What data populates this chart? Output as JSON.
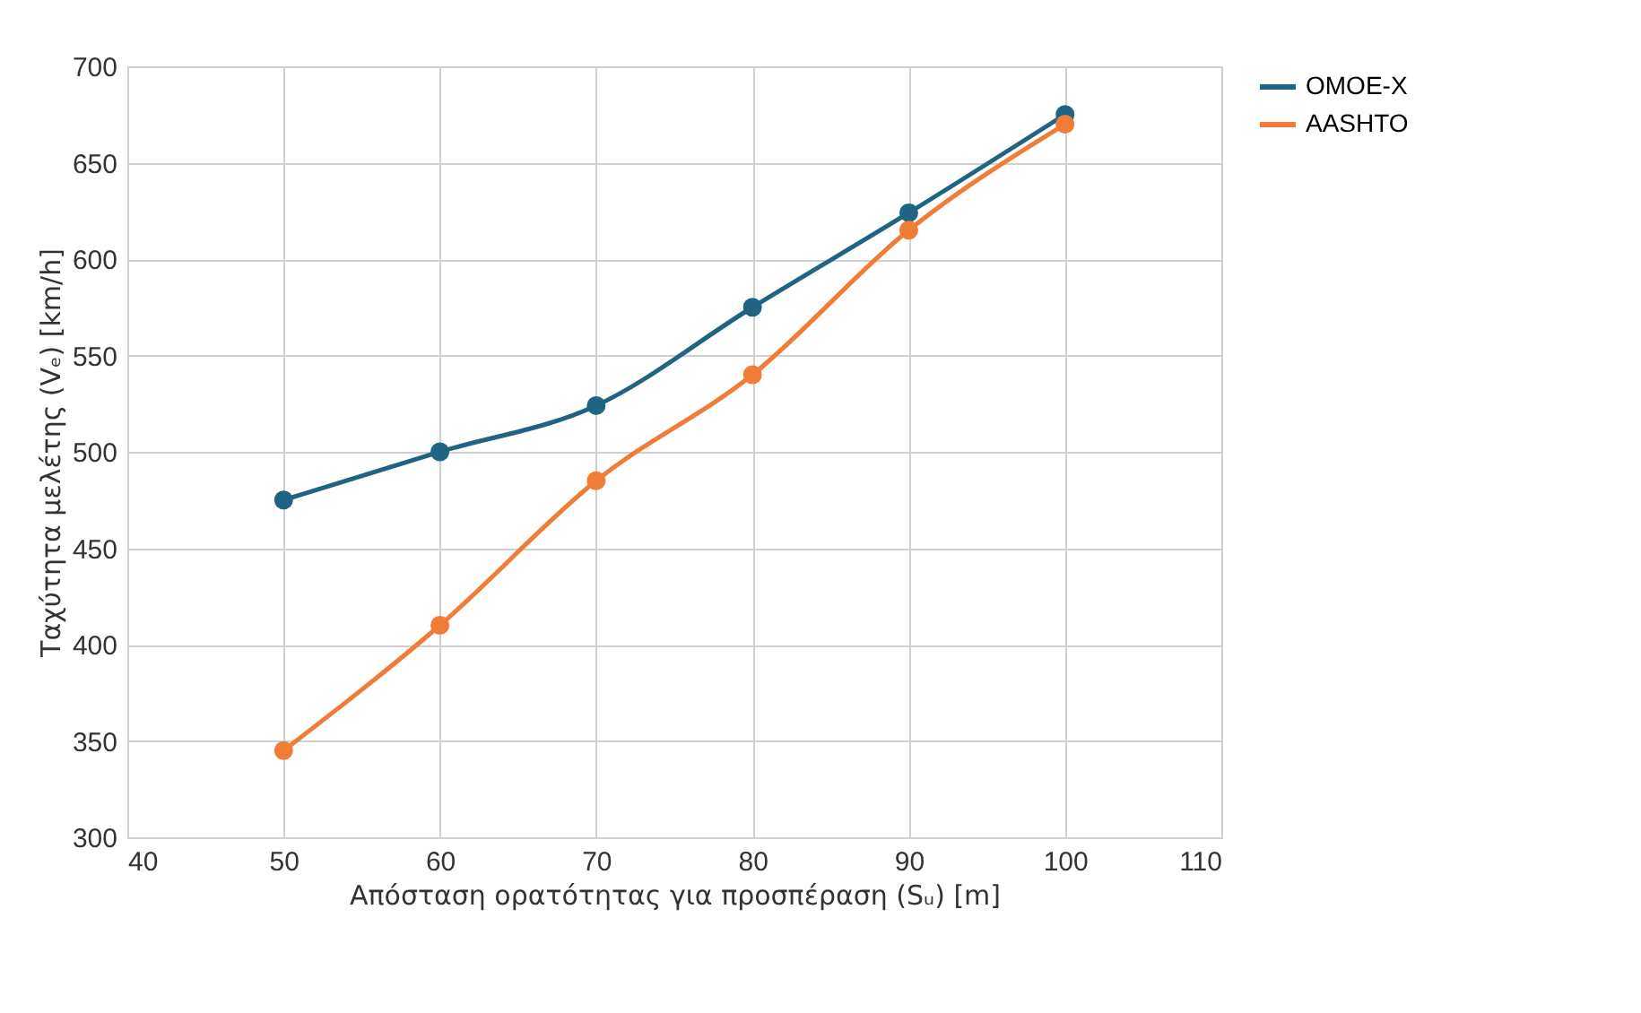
{
  "chart_data": {
    "type": "line",
    "xlabel": "Απόσταση ορατότητας για προσπέραση (Sᵤ) [m]",
    "ylabel": "Ταχύτητα μελέτης (Vₑ) [km/h]",
    "x": [
      50,
      60,
      70,
      80,
      90,
      100
    ],
    "series": [
      {
        "name": "OMOE-X",
        "color": "#1f6482",
        "values": [
          475,
          500,
          524,
          575,
          624,
          675
        ]
      },
      {
        "name": "AASHTO",
        "color": "#f07c36",
        "values": [
          345,
          410,
          485,
          540,
          615,
          670
        ]
      }
    ],
    "xlim": [
      40,
      110
    ],
    "xticks": [
      40,
      50,
      60,
      70,
      80,
      90,
      100,
      110
    ],
    "ylim": [
      300,
      700
    ],
    "yticks": [
      300,
      350,
      400,
      450,
      500,
      550,
      600,
      650,
      700
    ],
    "grid": true,
    "legend": "right",
    "marker": "circle",
    "line_style": "solid"
  }
}
